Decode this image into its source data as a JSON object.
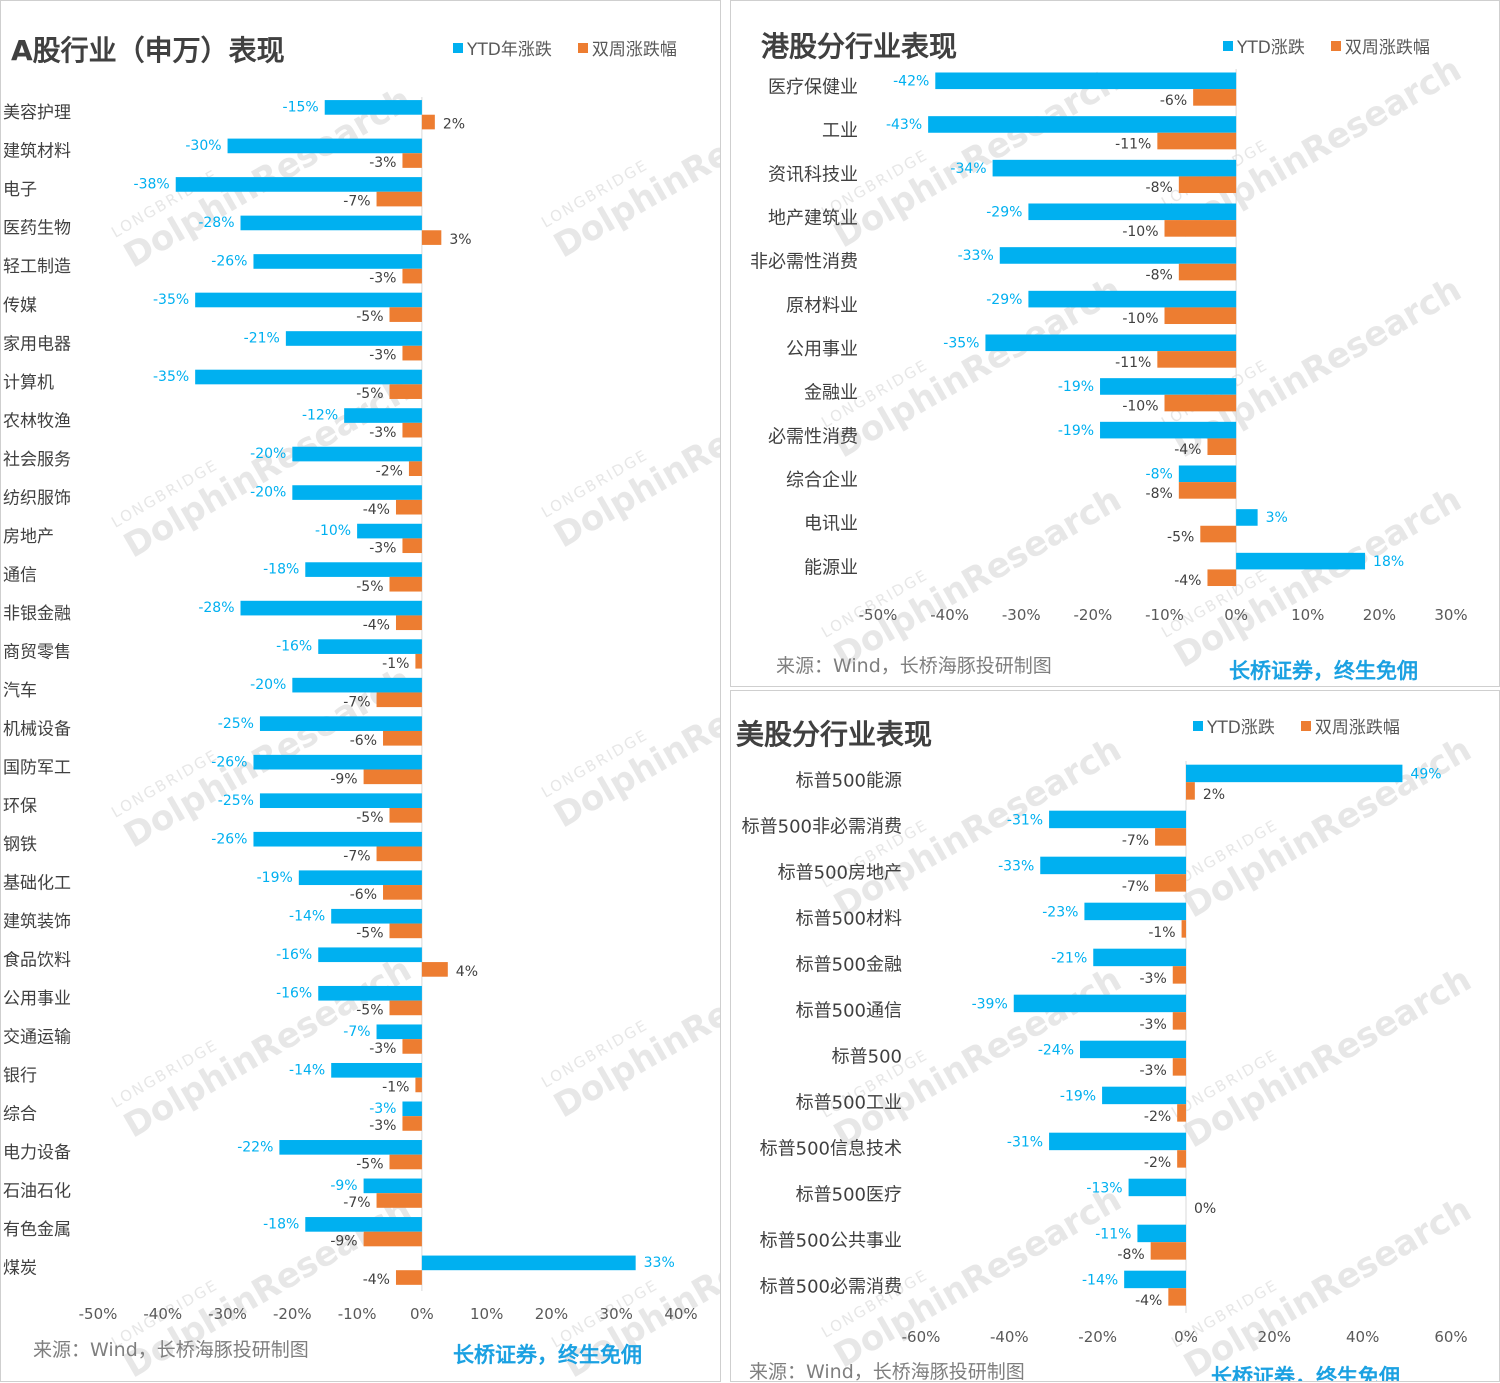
{
  "colors": {
    "ytd": "#00b0f0",
    "biweekly": "#ed7d31"
  },
  "footer": {
    "source": "来源：Wind，长桥海豚投研制图",
    "brand": "长桥证券，终生免佣"
  },
  "watermark": {
    "top": "LONGBRIDGE",
    "main": "DolphinResearch"
  },
  "chart_data": [
    {
      "type": "bar",
      "orientation": "horizontal",
      "title": "A股行业（申万）表现",
      "legend": [
        "YTD年涨跌",
        "双周涨跌幅"
      ],
      "legend_position": "top-right",
      "categories": [
        "美容护理",
        "建筑材料",
        "电子",
        "医药生物",
        "轻工制造",
        "传媒",
        "家用电器",
        "计算机",
        "农林牧渔",
        "社会服务",
        "纺织服饰",
        "房地产",
        "通信",
        "非银金融",
        "商贸零售",
        "汽车",
        "机械设备",
        "国防军工",
        "环保",
        "钢铁",
        "基础化工",
        "建筑装饰",
        "食品饮料",
        "公用事业",
        "交通运输",
        "银行",
        "综合",
        "电力设备",
        "石油石化",
        "有色金属",
        "煤炭"
      ],
      "series": [
        {
          "name": "YTD年涨跌",
          "values": [
            -15,
            -30,
            -38,
            -28,
            -26,
            -35,
            -21,
            -35,
            -12,
            -20,
            -20,
            -10,
            -18,
            -28,
            -16,
            -20,
            -25,
            -26,
            -25,
            -26,
            -19,
            -14,
            -16,
            -16,
            -7,
            -14,
            -3,
            -22,
            -9,
            -18,
            33
          ]
        },
        {
          "name": "双周涨跌幅",
          "values": [
            2,
            -3,
            -7,
            3,
            -3,
            -5,
            -3,
            -5,
            -3,
            -2,
            -4,
            -3,
            -5,
            -4,
            -1,
            -7,
            -6,
            -9,
            -5,
            -7,
            -6,
            -5,
            4,
            -5,
            -3,
            -1,
            -3,
            -5,
            -7,
            -9,
            -4
          ]
        }
      ],
      "xlim": [
        -50,
        40
      ],
      "xticks": [
        "-50%",
        "-40%",
        "-30%",
        "-20%",
        "-10%",
        "0%",
        "10%",
        "20%",
        "30%",
        "40%"
      ],
      "grid": false
    },
    {
      "type": "bar",
      "orientation": "horizontal",
      "title": "港股分行业表现",
      "legend": [
        "YTD涨跌",
        "双周涨跌幅"
      ],
      "legend_position": "top-right",
      "categories": [
        "医疗保健业",
        "工业",
        "资讯科技业",
        "地产建筑业",
        "非必需性消费",
        "原材料业",
        "公用事业",
        "金融业",
        "必需性消费",
        "综合企业",
        "电讯业",
        "能源业"
      ],
      "series": [
        {
          "name": "YTD涨跌",
          "values": [
            -42,
            -43,
            -34,
            -29,
            -33,
            -29,
            -35,
            -19,
            -19,
            -8,
            3,
            18
          ]
        },
        {
          "name": "双周涨跌幅",
          "values": [
            -6,
            -11,
            -8,
            -10,
            -8,
            -10,
            -11,
            -10,
            -4,
            -8,
            -5,
            -4
          ]
        }
      ],
      "xlim": [
        -50,
        30
      ],
      "xticks": [
        "-50%",
        "-40%",
        "-30%",
        "-20%",
        "-10%",
        "0%",
        "10%",
        "20%",
        "30%"
      ],
      "grid": false
    },
    {
      "type": "bar",
      "orientation": "horizontal",
      "title": "美股分行业表现",
      "legend": [
        "YTD涨跌",
        "双周涨跌幅"
      ],
      "legend_position": "top-right",
      "categories": [
        "标普500能源",
        "标普500非必需消费",
        "标普500房地产",
        "标普500材料",
        "标普500金融",
        "标普500通信",
        "标普500",
        "标普500工业",
        "标普500信息技术",
        "标普500医疗",
        "标普500公共事业",
        "标普500必需消费"
      ],
      "series": [
        {
          "name": "YTD涨跌",
          "values": [
            49,
            -31,
            -33,
            -23,
            -21,
            -39,
            -24,
            -19,
            -31,
            -13,
            -11,
            -14
          ]
        },
        {
          "name": "双周涨跌幅",
          "values": [
            2,
            -7,
            -7,
            -1,
            -3,
            -3,
            -3,
            -2,
            -2,
            0,
            -8,
            -4
          ]
        }
      ],
      "xlim": [
        -60,
        60
      ],
      "xticks": [
        "-60%",
        "-40%",
        "-20%",
        "0%",
        "20%",
        "40%",
        "60%"
      ],
      "grid": false
    }
  ]
}
